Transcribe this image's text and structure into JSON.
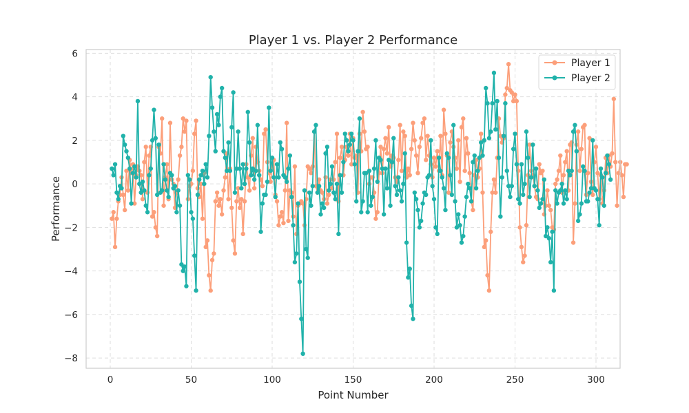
{
  "chart_data": {
    "type": "line",
    "title": "Player 1 vs. Player 2 Performance",
    "xlabel": "Point Number",
    "ylabel": "Performance",
    "xlim": [
      -14.9,
      314.9
    ],
    "ylim": [
      -8.47,
      6.17
    ],
    "x_ticks": [
      0,
      50,
      100,
      150,
      200,
      250,
      300
    ],
    "y_ticks": [
      -8,
      -6,
      -4,
      -2,
      0,
      2,
      4,
      6
    ],
    "grid": true,
    "legend_position": "top-right",
    "x_start": 1,
    "series": [
      {
        "name": "Player 1",
        "color": "#fc9f7a",
        "values": [
          -1.6,
          -1.3,
          -2.9,
          -1.6,
          -0.8,
          -0.5,
          0.3,
          -0.5,
          -1.2,
          0.6,
          -0.3,
          1.1,
          0.5,
          0.9,
          -0.9,
          0.4,
          0.8,
          0.6,
          0.4,
          -0.7,
          1.0,
          1.7,
          -0.4,
          1.3,
          1.7,
          -1.5,
          -1.3,
          -2.0,
          -2.4,
          1.7,
          1.4,
          3.0,
          -1.0,
          0.3,
          0.9,
          -0.7,
          2.8,
          0.2,
          0.0,
          -1.1,
          -0.4,
          0.2,
          1.3,
          1.7,
          3.0,
          2.4,
          2.9,
          -0.7,
          -0.1,
          0.0,
          0.6,
          2.3,
          2.9,
          -0.2,
          -0.6,
          0.0,
          -1.6,
          0.5,
          -2.9,
          -2.6,
          -4.2,
          -4.9,
          -3.5,
          -3.2,
          -0.8,
          -0.4,
          -1.0,
          -0.7,
          -1.4,
          -0.3,
          0.3,
          1.4,
          -0.7,
          0.7,
          -1.1,
          -2.6,
          -3.2,
          -0.8,
          -0.2,
          -1.1,
          -0.7,
          -2.3,
          -0.8,
          0.9,
          0.3,
          -0.3,
          1.3,
          2.1,
          -0.2,
          1.7,
          1.0,
          0.6,
          0.2,
          -0.1,
          2.3,
          2.5,
          1.0,
          0.5,
          0.1,
          0.9,
          1.1,
          -0.5,
          -0.8,
          -1.9,
          -1.5,
          -1.3,
          -1.8,
          -0.3,
          2.8,
          -1.7,
          -0.3,
          -0.4,
          -1.5,
          0.8,
          -2.3,
          -1.0,
          -0.9,
          -0.8,
          -0.9,
          -1.9,
          -0.7,
          0.8,
          0.7,
          0.5,
          0.8,
          2.4,
          -0.1,
          -0.4,
          0.2,
          -0.3,
          -0.4,
          -0.7,
          0.3,
          -0.9,
          -0.5,
          0.2,
          -0.2,
          0.2,
          1.0,
          2.3,
          -0.8,
          1.2,
          1.7,
          0.4,
          1.1,
          1.7,
          1.3,
          2.3,
          0.9,
          2.1,
          1.2,
          1.3,
          -0.4,
          2.3,
          1.5,
          3.3,
          2.4,
          1.6,
          1.7,
          0.0,
          0.3,
          0.3,
          -0.4,
          -1.6,
          -1.3,
          0.5,
          1.7,
          0.5,
          1.6,
          2.1,
          1.4,
          2.6,
          0.8,
          1.3,
          1.2,
          0.3,
          0.1,
          1.1,
          2.7,
          0.6,
          2.4,
          2.2,
          0.3,
          0.7,
          0.4,
          1.6,
          2.8,
          2.0,
          1.3,
          0.5,
          1.7,
          2.1,
          2.8,
          3.0,
          1.1,
          2.2,
          1.3,
          0.9,
          0.3,
          1.2,
          0.8,
          1.5,
          0.6,
          2.2,
          0.4,
          3.4,
          2.3,
          1.3,
          -0.4,
          1.9,
          2.4,
          1.7,
          1.2,
          0.7,
          2.0,
          0.1,
          2.6,
          3.0,
          0.6,
          2.1,
          1.4,
          0.5,
          -0.8,
          -1.2,
          0.4,
          1.1,
          0.3,
          0.7,
          2.3,
          -0.4,
          -2.9,
          -2.6,
          -4.2,
          -4.9,
          -2.2,
          -0.4,
          0.2,
          -0.4,
          1.2,
          3.0,
          2.2,
          1.9,
          2.1,
          4.1,
          4.4,
          5.5,
          4.3,
          4.2,
          3.8,
          4.1,
          3.8,
          0.6,
          -2.0,
          -2.9,
          -3.6,
          -3.3,
          -1.9,
          0.4,
          1.8,
          0.6,
          0.4,
          -0.1,
          -0.6,
          -0.7,
          0.9,
          0.5,
          0.6,
          -1.4,
          -1.0,
          -0.3,
          -1.0,
          -1.2,
          -2.0,
          -2.1,
          0.0,
          0.2,
          0.6,
          1.3,
          -0.4,
          0.4,
          1.0,
          1.5,
          -0.3,
          1.8,
          1.9,
          -2.7,
          -0.9,
          1.8,
          2.4,
          0.6,
          1.6,
          2.6,
          2.7,
          -0.5,
          0.5,
          2.1,
          0.1,
          -0.5,
          1.0,
          1.7,
          0.5,
          -0.7,
          0.4,
          -0.9,
          -0.3,
          1.2,
          0.5,
          1.3,
          0.8,
          1.4,
          3.9,
          1.0,
          -1.0,
          0.5,
          1.0,
          0.4,
          -0.6,
          0.9,
          0.9
        ]
      },
      {
        "name": "Player 2",
        "color": "#20b2aa",
        "values": [
          0.7,
          0.4,
          0.9,
          -0.4,
          -0.7,
          -0.1,
          -0.2,
          2.2,
          1.8,
          1.5,
          1.2,
          0.7,
          -0.9,
          0.5,
          0.8,
          0.3,
          3.8,
          0.0,
          -0.4,
          0.1,
          -0.3,
          -1.0,
          -1.3,
          0.4,
          0.7,
          2.0,
          3.4,
          2.1,
          -0.5,
          1.8,
          -0.4,
          -0.3,
          0.9,
          0.2,
          -0.3,
          -0.6,
          0.5,
          0.4,
          -0.2,
          -0.1,
          -1.3,
          -0.3,
          -1.0,
          -3.7,
          -4.0,
          -3.8,
          -4.7,
          0.4,
          0.2,
          -1.3,
          -1.6,
          -3.3,
          -4.9,
          -0.5,
          0.2,
          0.4,
          0.6,
          0.0,
          0.9,
          0.3,
          2.2,
          4.9,
          3.5,
          2.4,
          1.5,
          3.2,
          2.7,
          4.0,
          4.4,
          1.5,
          1.2,
          0.6,
          1.9,
          0.6,
          2.6,
          4.2,
          -0.4,
          0.7,
          2.4,
          0.7,
          -0.2,
          0.9,
          0.0,
          0.7,
          3.3,
          1.9,
          0.4,
          0.7,
          0.2,
          0.6,
          2.7,
          0.4,
          -2.2,
          -0.9,
          -0.5,
          -0.5,
          0.1,
          3.5,
          0.6,
          1.2,
          0.3,
          -0.6,
          0.9,
          0.3,
          1.9,
          1.6,
          0.4,
          0.3,
          0.1,
          0.7,
          1.3,
          -0.6,
          -1.9,
          -3.6,
          -3.2,
          -0.9,
          -4.5,
          -6.2,
          -7.8,
          -0.3,
          -3.0,
          -3.4,
          -0.4,
          -1.0,
          -0.1,
          2.4,
          2.7,
          -0.4,
          -0.1,
          -1.4,
          -0.9,
          -1.1,
          1.4,
          1.7,
          -0.3,
          0.0,
          0.8,
          -0.4,
          -0.7,
          0.0,
          -2.3,
          0.4,
          -0.4,
          1.0,
          2.3,
          2.0,
          1.5,
          1.8,
          2.3,
          2.0,
          0.9,
          -0.8,
          1.5,
          3.0,
          -1.3,
          -0.8,
          0.5,
          0.5,
          -1.3,
          0.6,
          -1.0,
          -0.6,
          0.7,
          2.0,
          0.1,
          1.2,
          1.1,
          0.7,
          -1.4,
          0.7,
          -0.2,
          1.1,
          -1.0,
          1.0,
          2.1,
          -0.1,
          -0.5,
          0.3,
          -0.3,
          -0.8,
          0.0,
          1.4,
          -2.7,
          -4.3,
          -3.9,
          -5.6,
          -6.2,
          -0.4,
          -0.7,
          -1.2,
          -2.0,
          -1.7,
          -0.9,
          -0.4,
          -0.5,
          0.3,
          0.4,
          2.0,
          -0.1,
          -0.7,
          -2.0,
          -2.3,
          1.2,
          0.6,
          0.3,
          -0.2,
          -1.2,
          1.4,
          1.2,
          0.4,
          -0.5,
          2.7,
          -0.8,
          -2.0,
          -1.4,
          -1.9,
          -2.7,
          -2.4,
          -1.5,
          -0.6,
          0.0,
          -0.2,
          -0.8,
          1.0,
          1.3,
          -0.2,
          0.6,
          1.2,
          1.9,
          1.3,
          2.0,
          4.4,
          3.7,
          2.1,
          2.4,
          3.7,
          5.1,
          2.5,
          3.8,
          1.2,
          -1.5,
          0.3,
          2.2,
          3.7,
          0.6,
          -0.1,
          -0.6,
          -0.1,
          1.6,
          2.3,
          0.9,
          -0.7,
          -0.9,
          0.9,
          -0.5,
          0.0,
          2.4,
          1.2,
          -0.6,
          0.3,
          1.8,
          -0.1,
          0.7,
          -0.3,
          -1.1,
          -0.9,
          -0.7,
          0.2,
          -2.4,
          -2.0,
          -2.5,
          -3.6,
          -2.2,
          -4.9,
          -0.3,
          -0.9,
          -0.4,
          -0.3,
          0.0,
          -0.9,
          -0.3,
          -0.7,
          0.6,
          0.4,
          0.6,
          2.4,
          2.7,
          1.5,
          -1.7,
          -1.4,
          -0.9,
          0.8,
          0.6,
          -0.8,
          -0.8,
          -0.4,
          -0.2,
          2.0,
          -0.2,
          -0.3,
          -0.7,
          -1.9,
          0.7,
          0.3,
          -1.0,
          0.5,
          1.3,
          0.9,
          0.2
        ]
      }
    ]
  }
}
